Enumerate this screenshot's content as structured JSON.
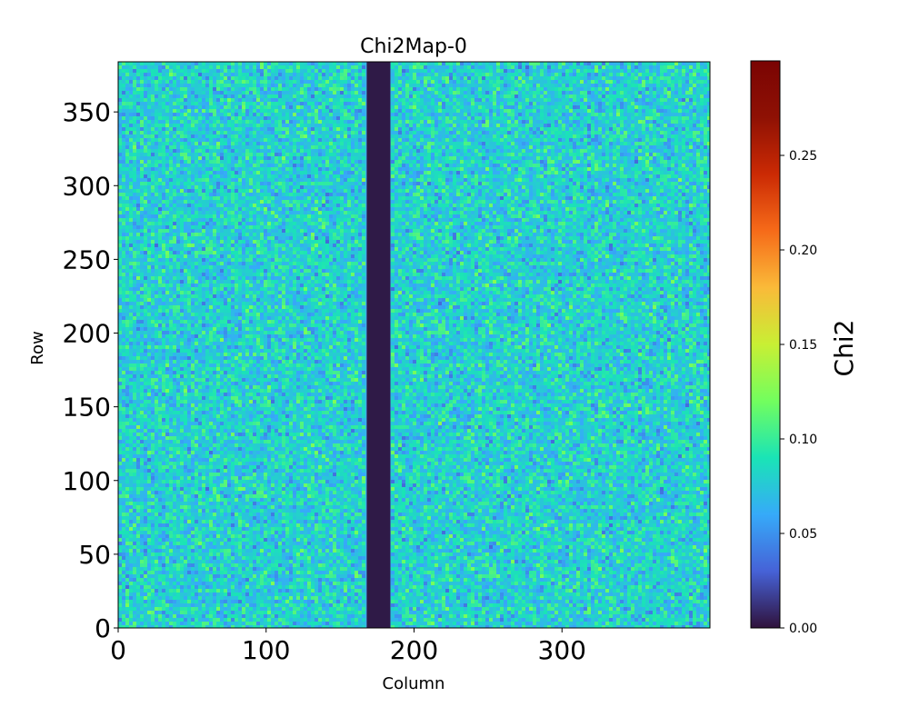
{
  "chart_data": {
    "type": "heatmap",
    "title": "Chi2Map-0",
    "xlabel": "Column",
    "ylabel": "Row",
    "colorbar_label": "Chi2",
    "colormap": "turbo",
    "xlim": [
      0,
      400
    ],
    "ylim": [
      0,
      384
    ],
    "x_ticks": [
      0,
      100,
      200,
      300
    ],
    "x_tick_labels": [
      "0",
      "100",
      "200",
      "300"
    ],
    "y_ticks": [
      0,
      50,
      100,
      150,
      200,
      250,
      300,
      350
    ],
    "y_tick_labels": [
      "0",
      "50",
      "100",
      "150",
      "200",
      "250",
      "300",
      "350"
    ],
    "clim": [
      0.0,
      0.3
    ],
    "colorbar_ticks": [
      0.0,
      0.05,
      0.1,
      0.15,
      0.2,
      0.25
    ],
    "colorbar_tick_labels": [
      "0.00",
      "0.05",
      "0.10",
      "0.15",
      "0.20",
      "0.25"
    ],
    "background_value_typical": 0.07,
    "background_value_range": [
      0.03,
      0.13
    ],
    "zero_band_columns": [
      168,
      184
    ],
    "zero_band_value": 0.0,
    "grid": false
  }
}
